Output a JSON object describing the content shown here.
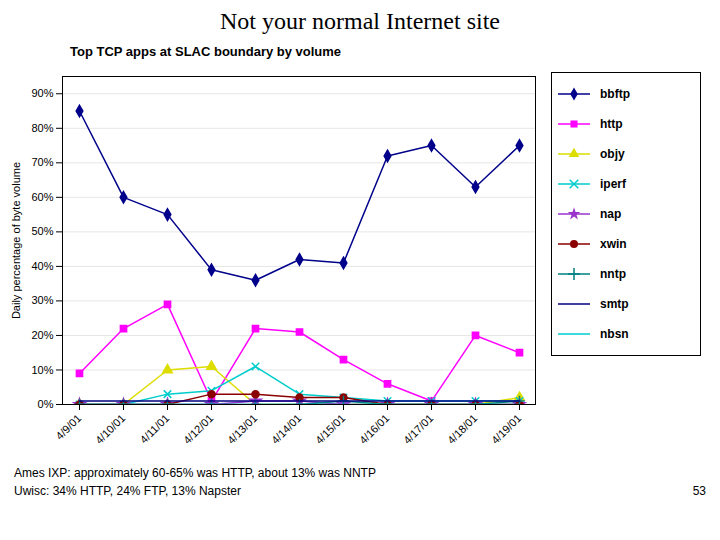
{
  "chart_data": {
    "type": "line",
    "title": "Not your normal Internet site",
    "subtitle": "Top TCP apps at SLAC  boundary by volume",
    "ylabel": "Daily percentage of byte volume",
    "categories": [
      "4/9/01",
      "4/10/01",
      "4/11/01",
      "4/12/01",
      "4/13/01",
      "4/14/01",
      "4/15/01",
      "4/16/01",
      "4/17/01",
      "4/18/01",
      "4/19/01"
    ],
    "series": [
      {
        "name": "bbftp",
        "color": "#00008B",
        "marker": "diamond",
        "values": [
          85,
          60,
          55,
          39,
          36,
          42,
          41,
          72,
          75,
          63,
          75
        ]
      },
      {
        "name": "http",
        "color": "#ff00ff",
        "marker": "square",
        "values": [
          9,
          22,
          29,
          1,
          22,
          21,
          13,
          6,
          1,
          20,
          15
        ]
      },
      {
        "name": "objy",
        "color": "#dddd00",
        "marker": "triangle",
        "values": [
          0,
          0,
          10,
          11,
          0,
          0,
          0,
          0,
          0,
          0,
          2
        ]
      },
      {
        "name": "iperf",
        "color": "#00cccc",
        "marker": "times",
        "values": [
          0,
          0,
          3,
          4,
          11,
          3,
          2,
          1,
          1,
          1,
          1
        ]
      },
      {
        "name": "nap",
        "color": "#9933cc",
        "marker": "star",
        "values": [
          0,
          0,
          0,
          0,
          1,
          1,
          0,
          0,
          0,
          0,
          0
        ]
      },
      {
        "name": "xwin",
        "color": "#8B0000",
        "marker": "circle",
        "values": [
          0,
          0,
          0,
          3,
          3,
          2,
          2,
          0,
          0,
          0,
          0
        ]
      },
      {
        "name": "nntp",
        "color": "#008080",
        "marker": "plus",
        "values": [
          0,
          0,
          0,
          0,
          0,
          0,
          1,
          0,
          0,
          0,
          1
        ]
      },
      {
        "name": "smtp",
        "color": "#000080",
        "marker": "none",
        "values": [
          1,
          1,
          1,
          1,
          1,
          1,
          1,
          1,
          1,
          1,
          1
        ]
      },
      {
        "name": "nbsn",
        "color": "#00cccc",
        "marker": "none",
        "values": [
          0,
          0,
          0,
          0,
          0,
          0,
          0,
          0,
          0,
          0,
          0
        ]
      }
    ],
    "ylim": [
      0,
      95
    ],
    "yticks": [
      {
        "value": 0,
        "label": "0%"
      },
      {
        "value": 10,
        "label": "10%"
      },
      {
        "value": 20,
        "label": "20%"
      },
      {
        "value": 30,
        "label": "30%"
      },
      {
        "value": 40,
        "label": "40%"
      },
      {
        "value": 50,
        "label": "50%"
      },
      {
        "value": 60,
        "label": "60%"
      },
      {
        "value": 70,
        "label": "70%"
      },
      {
        "value": 80,
        "label": "80%"
      },
      {
        "value": 90,
        "label": "90%"
      }
    ],
    "grid": true,
    "legend": "right",
    "annotations": [
      "Ames IXP: approximately 60-65% was HTTP, about 13% was NNTP",
      "Uwisc: 34% HTTP, 24% FTP, 13% Napster",
      "53"
    ]
  }
}
